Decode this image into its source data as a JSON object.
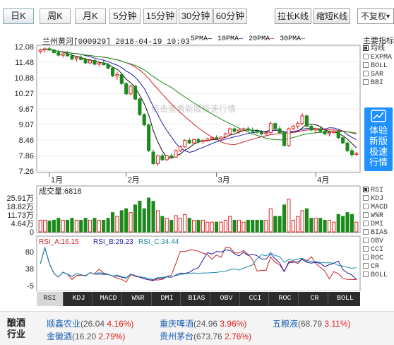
{
  "toolbar": {
    "periods": [
      "日K",
      "周K",
      "月K",
      "5分钟",
      "15分钟",
      "30分钟",
      "60分钟"
    ],
    "active_period": "日K",
    "lengthen_label": "拉长K线",
    "shorten_label": "缩短K线",
    "adjust_label": "不复权"
  },
  "header": {
    "title": "兰州黄河[000929] 2018-04-19 10:03",
    "ma_labels": [
      "5PMA",
      "10PMA",
      "20PMA",
      "30PMA"
    ],
    "ma_colors": [
      "#111111",
      "#1a1aa6",
      "#cc2222",
      "#1a8a1a"
    ]
  },
  "watermark": "点击查看新版极速行情",
  "price_axis": [
    "12.08",
    "11.48",
    "10.88",
    "10.27",
    "9.67",
    "9.07",
    "8.46",
    "7.86",
    "7.26"
  ],
  "month_labels": [
    "1月",
    "2月",
    "3月",
    "4月"
  ],
  "volume": {
    "title": "成交量:6818",
    "axis": [
      "25.91万",
      "18.82万",
      "11.73万",
      "4.64万",
      "0"
    ]
  },
  "rsi": {
    "label_a": "RSI_A:16.15",
    "label_b": "RSI_B:29.23",
    "label_c": "RSI_C:34.44",
    "axis": [
      "80",
      "38",
      "-5"
    ]
  },
  "indicator_tabs": [
    "RSI",
    "KDJ",
    "MACD",
    "W%R",
    "DMI",
    "BIAS",
    "OBV",
    "CCI",
    "ROC",
    "CR",
    "BOLL"
  ],
  "active_tab": "RSI",
  "main_indicators": {
    "title": "主要指标",
    "items": [
      "均线",
      "EXPMA",
      "BOLL",
      "SAR",
      "BBI"
    ],
    "checked": "均线"
  },
  "sub_indicators": {
    "items": [
      "RSI",
      "KDJ",
      "MACD",
      "W%R",
      "DMI",
      "BIAS",
      "OBV",
      "CCI",
      "ROC",
      "CR",
      "BOLL"
    ],
    "checked": "RSI"
  },
  "promo": {
    "line1": "体验",
    "line2": "新版",
    "line3": "极速",
    "line4": "行情"
  },
  "footer": {
    "sector_line1": "酿酒",
    "sector_line2": "行业",
    "stocks": [
      {
        "name": "顺鑫农业",
        "price": "(26.04",
        "change": "4.16%)"
      },
      {
        "name": "重庆啤酒",
        "price": "(24.96",
        "change": "3.96%)"
      },
      {
        "name": "五粮液",
        "price": "(68.79",
        "change": "3.11%)"
      },
      {
        "name": "金徽酒",
        "price": "(16.20",
        "change": "2.79%)"
      },
      {
        "name": "贵州茅台",
        "price": "(673.76",
        "change": "2.76%)"
      }
    ]
  },
  "chart_data": {
    "type": "candlestick",
    "title": "兰州黄河[000929]",
    "y_range": [
      7.26,
      12.08
    ],
    "x_months": [
      "1月",
      "2月",
      "3月",
      "4月"
    ],
    "candles": [
      [
        11.9,
        12.0,
        11.8,
        11.95
      ],
      [
        11.95,
        12.05,
        11.85,
        12.0
      ],
      [
        12.0,
        12.08,
        11.9,
        11.95
      ],
      [
        11.95,
        12.0,
        11.8,
        11.85
      ],
      [
        11.85,
        11.95,
        11.7,
        11.75
      ],
      [
        11.75,
        11.85,
        11.65,
        11.8
      ],
      [
        11.8,
        11.9,
        11.7,
        11.72
      ],
      [
        11.72,
        11.8,
        11.55,
        11.6
      ],
      [
        11.6,
        11.7,
        11.5,
        11.65
      ],
      [
        11.65,
        11.75,
        11.55,
        11.58
      ],
      [
        11.58,
        11.65,
        11.4,
        11.45
      ],
      [
        11.45,
        11.6,
        11.4,
        11.55
      ],
      [
        11.55,
        11.6,
        11.35,
        11.4
      ],
      [
        11.4,
        11.5,
        11.3,
        11.45
      ],
      [
        11.45,
        11.55,
        11.35,
        11.38
      ],
      [
        11.38,
        11.45,
        11.2,
        11.25
      ],
      [
        11.25,
        11.3,
        10.9,
        10.95
      ],
      [
        10.95,
        11.1,
        10.8,
        11.0
      ],
      [
        11.0,
        11.05,
        10.6,
        10.65
      ],
      [
        10.65,
        10.7,
        10.2,
        10.25
      ],
      [
        10.25,
        10.6,
        10.2,
        10.55
      ],
      [
        10.55,
        10.6,
        10.0,
        10.05
      ],
      [
        10.05,
        10.1,
        9.4,
        9.45
      ],
      [
        9.45,
        9.5,
        9.0,
        9.05
      ],
      [
        9.05,
        9.1,
        8.0,
        8.05
      ],
      [
        8.0,
        8.1,
        7.5,
        7.55
      ],
      [
        7.55,
        7.9,
        7.45,
        7.85
      ],
      [
        7.85,
        7.95,
        7.65,
        7.7
      ],
      [
        7.7,
        7.9,
        7.65,
        7.85
      ],
      [
        7.85,
        7.95,
        7.75,
        7.8
      ],
      [
        7.8,
        8.1,
        7.78,
        8.05
      ],
      [
        8.05,
        8.25,
        8.0,
        8.2
      ],
      [
        8.2,
        8.5,
        8.15,
        8.45
      ],
      [
        8.45,
        8.55,
        8.3,
        8.35
      ],
      [
        8.35,
        8.5,
        8.3,
        8.48
      ],
      [
        8.48,
        8.55,
        8.35,
        8.4
      ],
      [
        8.4,
        8.5,
        8.3,
        8.45
      ],
      [
        8.45,
        8.55,
        8.4,
        8.5
      ],
      [
        8.5,
        8.6,
        8.45,
        8.55
      ],
      [
        8.55,
        8.65,
        8.5,
        8.52
      ],
      [
        8.52,
        8.6,
        8.45,
        8.58
      ],
      [
        8.58,
        8.75,
        8.55,
        8.7
      ],
      [
        8.7,
        8.95,
        8.65,
        8.9
      ],
      [
        8.9,
        8.95,
        8.75,
        8.8
      ],
      [
        8.8,
        8.9,
        8.7,
        8.85
      ],
      [
        8.85,
        8.95,
        8.8,
        8.9
      ],
      [
        8.9,
        9.0,
        8.8,
        8.85
      ],
      [
        8.85,
        8.95,
        8.75,
        8.8
      ],
      [
        8.8,
        8.9,
        8.7,
        8.78
      ],
      [
        8.78,
        8.85,
        8.65,
        8.7
      ],
      [
        8.7,
        8.8,
        8.6,
        8.75
      ],
      [
        8.75,
        9.2,
        8.7,
        9.1
      ],
      [
        9.1,
        9.15,
        8.85,
        8.9
      ],
      [
        8.9,
        9.0,
        8.7,
        8.75
      ],
      [
        8.75,
        8.8,
        8.2,
        8.25
      ],
      [
        8.25,
        8.95,
        8.2,
        8.9
      ],
      [
        8.9,
        9.05,
        8.85,
        9.0
      ],
      [
        9.0,
        9.2,
        8.9,
        9.1
      ],
      [
        9.1,
        9.5,
        9.05,
        9.4
      ],
      [
        9.4,
        9.45,
        8.95,
        9.0
      ],
      [
        9.0,
        9.05,
        8.8,
        8.85
      ],
      [
        8.85,
        8.95,
        8.7,
        8.9
      ],
      [
        8.9,
        9.0,
        8.75,
        8.8
      ],
      [
        8.8,
        8.85,
        8.65,
        8.7
      ],
      [
        8.7,
        8.8,
        8.6,
        8.75
      ],
      [
        8.75,
        8.85,
        8.7,
        8.8
      ],
      [
        8.8,
        8.85,
        8.5,
        8.55
      ],
      [
        8.55,
        8.6,
        8.3,
        8.35
      ],
      [
        8.35,
        8.4,
        8.0,
        8.05
      ],
      [
        8.05,
        8.15,
        7.8,
        7.9
      ],
      [
        7.9,
        8.0,
        7.85,
        7.95
      ]
    ]
  }
}
